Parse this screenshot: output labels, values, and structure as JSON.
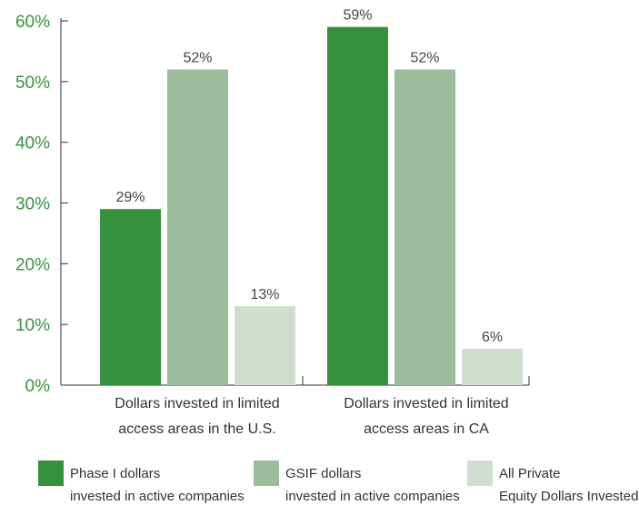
{
  "chart_data": {
    "type": "bar",
    "categories": [
      "Dollars invested in limited access areas in the U.S.",
      "Dollars invested in limited access areas in CA"
    ],
    "category_lines": [
      [
        "Dollars invested in limited",
        "access areas in the U.S."
      ],
      [
        "Dollars invested in limited",
        "access areas in CA"
      ]
    ],
    "series": [
      {
        "name": "Phase I dollars invested in active companies",
        "values": [
          29,
          59
        ],
        "color": "#36913f"
      },
      {
        "name": "GSIF dollars invested in active companies",
        "values": [
          52,
          52
        ],
        "color": "#9bbd9c"
      },
      {
        "name": "All Private Equity Dollars Invested",
        "values": [
          13,
          6
        ],
        "color": "#cfdecf"
      }
    ],
    "data_labels": [
      [
        "29%",
        "59%"
      ],
      [
        "52%",
        "52%"
      ],
      [
        "13%",
        "6%"
      ]
    ],
    "yticks": [
      "0%",
      "10%",
      "20%",
      "30%",
      "40%",
      "50%",
      "60%"
    ],
    "ylim": [
      0,
      60
    ],
    "ytick_color": "#3a913f",
    "axis_color": "#333333",
    "title": "",
    "xlabel": "",
    "ylabel": "",
    "legend_placement": "bottom",
    "grid": false
  },
  "legend": [
    {
      "text": "Phase I dollars\ninvested in active companies",
      "color": "#36913f"
    },
    {
      "text": "GSIF dollars\ninvested in active companies",
      "color": "#9bbd9c"
    },
    {
      "text": "All Private\nEquity Dollars Invested",
      "color": "#cfdecf"
    }
  ]
}
